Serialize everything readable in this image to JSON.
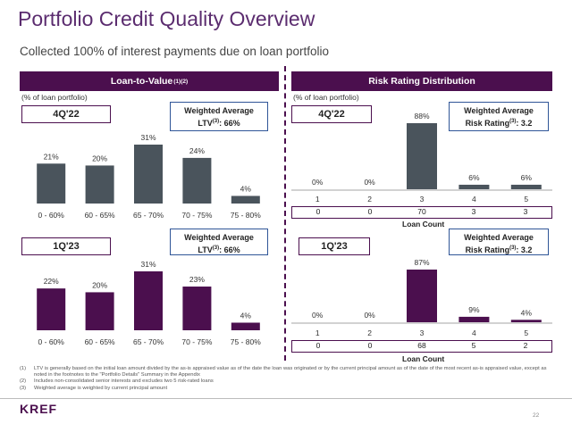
{
  "title": "Portfolio Credit Quality Overview",
  "subtitle": "Collected 100% of interest payments due on loan portfolio",
  "ltv_section": {
    "header": "Loan-to-Value",
    "header_sup": "(1)(2)",
    "unit_label": "(% of loan portfolio)"
  },
  "risk_section": {
    "header": "Risk Rating Distribution",
    "unit_label": "(% of loan portfolio)",
    "count_title": "Loan Count"
  },
  "chart_data": [
    {
      "type": "bar",
      "id": "ltv_4q22",
      "period": "4Q'22",
      "summary": {
        "line1": "Weighted Average",
        "line2_prefix": "LTV",
        "line2_sup": "(3)",
        "line2_suffix": ": 66%"
      },
      "categories": [
        "0 - 60%",
        "60 - 65%",
        "65 - 70%",
        "70 - 75%",
        "75 - 80%"
      ],
      "values": [
        21,
        20,
        31,
        24,
        4
      ],
      "value_labels": [
        "21%",
        "20%",
        "31%",
        "24%",
        "4%"
      ],
      "color": "#4a545c",
      "ylim": [
        0,
        31
      ]
    },
    {
      "type": "bar",
      "id": "ltv_1q23",
      "period": "1Q'23",
      "summary": {
        "line1": "Weighted Average",
        "line2_prefix": "LTV",
        "line2_sup": "(3)",
        "line2_suffix": ": 66%"
      },
      "categories": [
        "0 - 60%",
        "60 - 65%",
        "65 - 70%",
        "70 - 75%",
        "75 - 80%"
      ],
      "values": [
        22,
        20,
        31,
        23,
        4
      ],
      "value_labels": [
        "22%",
        "20%",
        "31%",
        "23%",
        "4%"
      ],
      "color": "#4b0f4e",
      "ylim": [
        0,
        31
      ]
    },
    {
      "type": "bar",
      "id": "risk_4q22",
      "period": "4Q'22",
      "summary": {
        "line1": "Weighted Average",
        "line2_prefix": "Risk Rating",
        "line2_sup": "(3)",
        "line2_suffix": ": 3.2"
      },
      "categories": [
        "1",
        "2",
        "3",
        "4",
        "5"
      ],
      "values": [
        0,
        0,
        88,
        6,
        6
      ],
      "value_labels": [
        "0%",
        "0%",
        "88%",
        "6%",
        "6%"
      ],
      "loan_counts": [
        "0",
        "0",
        "70",
        "3",
        "3"
      ],
      "color": "#4a545c",
      "ylim": [
        0,
        88
      ]
    },
    {
      "type": "bar",
      "id": "risk_1q23",
      "period": "1Q'23",
      "summary": {
        "line1": "Weighted Average",
        "line2_prefix": "Risk Rating",
        "line2_sup": "(3)",
        "line2_suffix": ": 3.2"
      },
      "categories": [
        "1",
        "2",
        "3",
        "4",
        "5"
      ],
      "values": [
        0,
        0,
        87,
        9,
        4
      ],
      "value_labels": [
        "0%",
        "0%",
        "87%",
        "9%",
        "4%"
      ],
      "loan_counts": [
        "0",
        "0",
        "68",
        "5",
        "2"
      ],
      "color": "#4b0f4e",
      "ylim": [
        0,
        87
      ]
    }
  ],
  "footnotes": [
    {
      "num": "(1)",
      "text": "LTV is generally based on the initial loan amount divided by the as-is appraised value as of the date the loan was originated or by the current principal amount as of the date of the most recent as-is appraised value, except as noted in the footnotes to the \"Portfolio Details\" Summary in the Appendix"
    },
    {
      "num": "(2)",
      "text": "Includes non-consolidated senior interests and excludes two 5 risk-rated loans"
    },
    {
      "num": "(3)",
      "text": "Weighted average is weighted by current principal amount"
    }
  ],
  "logo": "KREF",
  "page_number": "22"
}
